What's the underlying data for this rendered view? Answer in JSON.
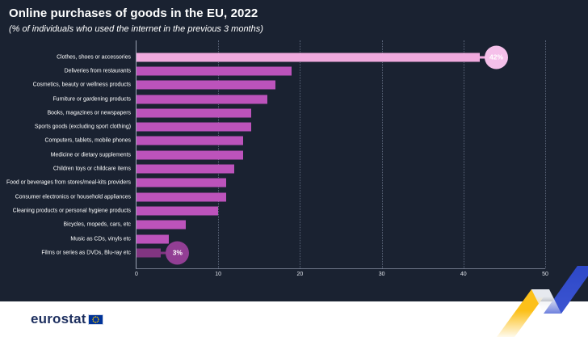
{
  "title": "Online purchases of goods in the EU, 2022",
  "subtitle": "(% of individuals who used the internet in the previous 3 months)",
  "footer": {
    "logo_text": "eurostat"
  },
  "colors": {
    "background": "#1a2231",
    "bar_default": "#bc53bb",
    "bar_top_highlight": "#f0aade",
    "badge_top": "#f5c0ea",
    "bar_bottom_highlight": "#813581",
    "badge_bottom": "#923e94",
    "grid": "#5a6478",
    "axis_text": "#dfe3ea",
    "logo_navy": "#1c2e5e",
    "eu_flag_blue": "#003399",
    "eu_star_yellow": "#ffcc00",
    "accent_yellow": "#fcc01a",
    "accent_white": "#e9ecf1",
    "accent_blue": "#2b46c6"
  },
  "chart_data": {
    "type": "bar",
    "orientation": "horizontal",
    "title": "Online purchases of goods in the EU, 2022",
    "subtitle": "(% of individuals who used the internet in the previous 3 months)",
    "xlabel": "",
    "ylabel": "",
    "xlim": [
      0,
      50
    ],
    "x_ticks": [
      "0",
      "10",
      "20",
      "30",
      "40",
      "50"
    ],
    "grid": "dotted-vertical",
    "legend": "none",
    "default_bar_color": "#bc53bb",
    "points": [
      {
        "category": "Clothes, shoes or accessories",
        "value": 42,
        "badge": "42%",
        "color": "#f0aade",
        "badge_color": "#f5c0ea"
      },
      {
        "category": "Deliveries from restaurants",
        "value": 19
      },
      {
        "category": "Cosmetics, beauty or wellness products",
        "value": 17
      },
      {
        "category": "Furniture or gardening products",
        "value": 16
      },
      {
        "category": "Books, magazines or newspapers",
        "value": 14
      },
      {
        "category": "Sports goods (excluding sport clothing)",
        "value": 14
      },
      {
        "category": "Computers, tablets, mobile phones",
        "value": 13
      },
      {
        "category": "Medicine or dietary supplements",
        "value": 13
      },
      {
        "category": "Children toys or childcare items",
        "value": 12
      },
      {
        "category": "Food or beverages from stores/meal-kits providers",
        "value": 11
      },
      {
        "category": "Consumer electronics or household appliances",
        "value": 11
      },
      {
        "category": "Cleaning products or personal hygiene products",
        "value": 10
      },
      {
        "category": "Bicycles, mopeds, cars, etc",
        "value": 6
      },
      {
        "category": "Music as CDs, vinyls etc",
        "value": 4
      },
      {
        "category": "Films or series as DVDs, Blu-ray etc",
        "value": 3,
        "badge": "3%",
        "color": "#813581",
        "badge_color": "#923e94"
      }
    ]
  }
}
